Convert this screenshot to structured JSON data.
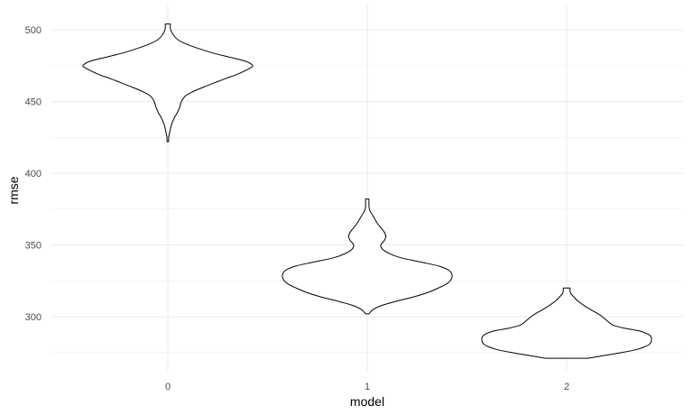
{
  "chart_data": {
    "type": "violin",
    "title": "",
    "xlabel": "model",
    "ylabel": "rmse",
    "categories": [
      "0",
      "1",
      "2"
    ],
    "ylim": [
      265,
      517
    ],
    "y_major_ticks": [
      300,
      350,
      400,
      450,
      500
    ],
    "y_minor_ticks": [
      275,
      325,
      375,
      425,
      475
    ],
    "grid": true,
    "colors": {
      "outline": "#000000",
      "fill": "#ffffff",
      "grid": "#ebebeb"
    },
    "violins": [
      {
        "category": "0",
        "y_range": [
          422,
          504
        ],
        "profile": [
          [
            422,
            0.01
          ],
          [
            425,
            0.01
          ],
          [
            428,
            0.02
          ],
          [
            431,
            0.03
          ],
          [
            435,
            0.05
          ],
          [
            439,
            0.08
          ],
          [
            442,
            0.11
          ],
          [
            446,
            0.14
          ],
          [
            450,
            0.16
          ],
          [
            454,
            0.21
          ],
          [
            457,
            0.3
          ],
          [
            460,
            0.42
          ],
          [
            463,
            0.55
          ],
          [
            466,
            0.68
          ],
          [
            469,
            0.82
          ],
          [
            473,
            0.96
          ],
          [
            475,
            1.0
          ],
          [
            478,
            0.92
          ],
          [
            481,
            0.72
          ],
          [
            484,
            0.52
          ],
          [
            487,
            0.36
          ],
          [
            490,
            0.22
          ],
          [
            493,
            0.12
          ],
          [
            496,
            0.07
          ],
          [
            499,
            0.04
          ],
          [
            501,
            0.03
          ],
          [
            503,
            0.03
          ],
          [
            504,
            0.03
          ]
        ]
      },
      {
        "category": "1",
        "y_range": [
          302,
          382
        ],
        "profile": [
          [
            302,
            0.02
          ],
          [
            305,
            0.07
          ],
          [
            308,
            0.18
          ],
          [
            311,
            0.36
          ],
          [
            314,
            0.56
          ],
          [
            317,
            0.72
          ],
          [
            320,
            0.84
          ],
          [
            323,
            0.94
          ],
          [
            326,
            0.99
          ],
          [
            329,
            1.0
          ],
          [
            332,
            0.97
          ],
          [
            335,
            0.86
          ],
          [
            338,
            0.64
          ],
          [
            341,
            0.4
          ],
          [
            344,
            0.26
          ],
          [
            347,
            0.18
          ],
          [
            350,
            0.16
          ],
          [
            353,
            0.2
          ],
          [
            356,
            0.22
          ],
          [
            359,
            0.2
          ],
          [
            362,
            0.16
          ],
          [
            365,
            0.12
          ],
          [
            368,
            0.09
          ],
          [
            371,
            0.06
          ],
          [
            374,
            0.03
          ],
          [
            377,
            0.02
          ],
          [
            380,
            0.02
          ],
          [
            382,
            0.02
          ]
        ]
      },
      {
        "category": "2",
        "y_range": [
          271,
          320
        ],
        "profile": [
          [
            271,
            0.25
          ],
          [
            273,
            0.45
          ],
          [
            275,
            0.65
          ],
          [
            277,
            0.82
          ],
          [
            279,
            0.92
          ],
          [
            281,
            0.98
          ],
          [
            284,
            1.0
          ],
          [
            287,
            0.98
          ],
          [
            290,
            0.86
          ],
          [
            292,
            0.68
          ],
          [
            294,
            0.55
          ],
          [
            296,
            0.5
          ],
          [
            298,
            0.46
          ],
          [
            300,
            0.42
          ],
          [
            302,
            0.37
          ],
          [
            305,
            0.28
          ],
          [
            308,
            0.2
          ],
          [
            311,
            0.13
          ],
          [
            314,
            0.08
          ],
          [
            316,
            0.05
          ],
          [
            318,
            0.04
          ],
          [
            320,
            0.04
          ]
        ]
      }
    ]
  }
}
